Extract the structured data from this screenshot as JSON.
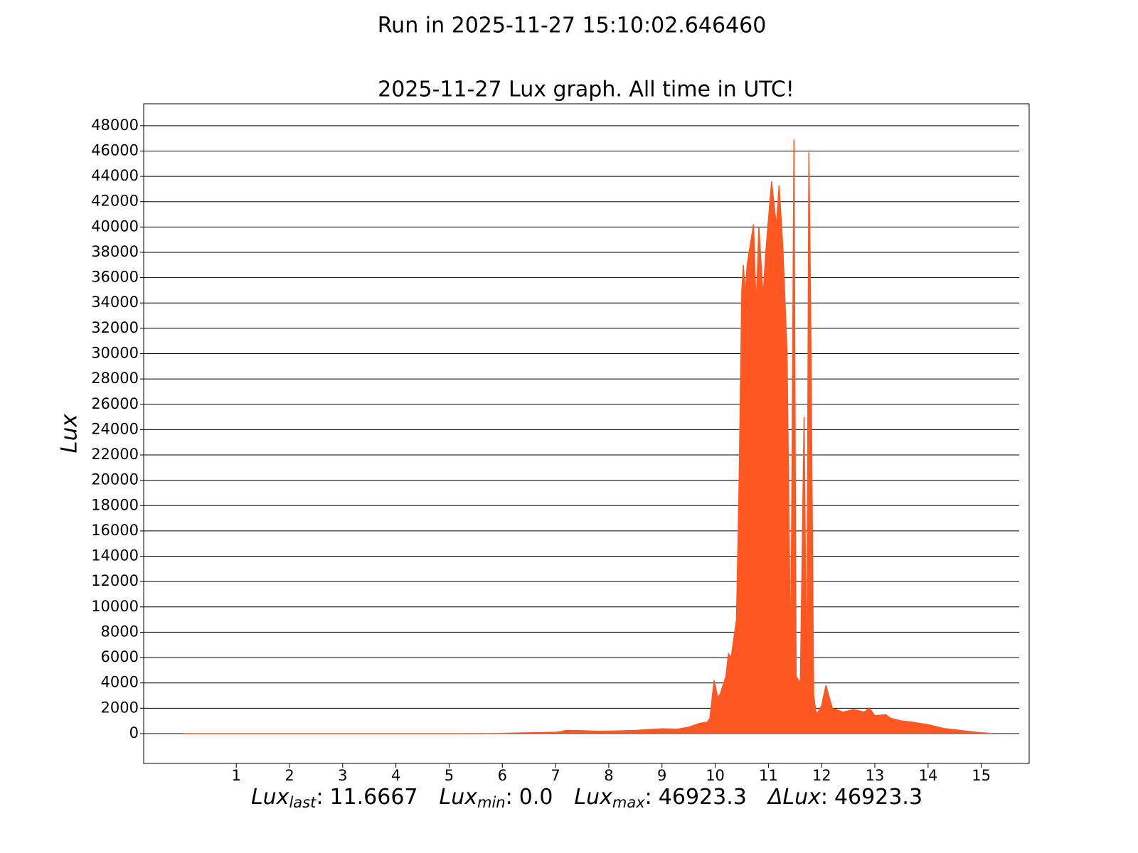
{
  "chart_data": {
    "type": "area",
    "suptitle": "Run in 2025-11-27 15:10:02.646460",
    "title": "2025-11-27 Lux graph. All time in UTC!",
    "ylabel": "Lux",
    "color": "#ff5722",
    "grid": true,
    "xlim": [
      -0.74,
      15.9
    ],
    "ylim": [
      -2360,
      49730
    ],
    "xticks": [
      1,
      2,
      3,
      4,
      5,
      6,
      7,
      8,
      9,
      10,
      11,
      12,
      13,
      14,
      15
    ],
    "yticks": [
      0,
      2000,
      4000,
      6000,
      8000,
      10000,
      12000,
      14000,
      16000,
      18000,
      20000,
      22000,
      24000,
      26000,
      28000,
      30000,
      32000,
      34000,
      36000,
      38000,
      40000,
      42000,
      44000,
      46000,
      48000
    ],
    "x": [
      0.0,
      1.0,
      2.0,
      3.0,
      4.0,
      5.0,
      5.5,
      6.0,
      6.5,
      7.0,
      7.1,
      7.2,
      7.5,
      7.8,
      8.0,
      8.5,
      9.0,
      9.3,
      9.5,
      9.7,
      9.85,
      9.9,
      9.98,
      10.05,
      10.1,
      10.2,
      10.25,
      10.3,
      10.4,
      10.45,
      10.5,
      10.53,
      10.56,
      10.6,
      10.72,
      10.77,
      10.82,
      10.9,
      10.95,
      11.06,
      11.15,
      11.2,
      11.27,
      11.35,
      11.42,
      11.48,
      11.52,
      11.6,
      11.67,
      11.72,
      11.76,
      11.79,
      11.85,
      11.9,
      12.0,
      12.08,
      12.2,
      12.4,
      12.6,
      12.8,
      12.9,
      13.0,
      13.2,
      13.3,
      13.5,
      13.7,
      14.0,
      14.3,
      14.7,
      15.0,
      15.2
    ],
    "values": [
      0,
      0,
      0,
      0,
      0,
      0,
      5,
      20,
      60,
      100,
      150,
      250,
      230,
      180,
      190,
      250,
      380,
      350,
      500,
      800,
      900,
      1200,
      4200,
      2800,
      3200,
      4500,
      6300,
      6000,
      9000,
      20000,
      35000,
      37000,
      34500,
      37000,
      40200,
      33500,
      40000,
      34500,
      38000,
      43600,
      40000,
      43300,
      38500,
      30000,
      5000,
      46900,
      4500,
      4000,
      25000,
      2500,
      45900,
      35000,
      3000,
      1500,
      2200,
      3800,
      2000,
      1700,
      1900,
      1700,
      2000,
      1400,
      1500,
      1200,
      1000,
      900,
      700,
      400,
      200,
      60,
      10
    ],
    "separator": ":",
    "stats": [
      {
        "symbol": "Lux",
        "subscript": "last",
        "value": "11.6667"
      },
      {
        "symbol": "Lux",
        "subscript": "min",
        "value": "0.0"
      },
      {
        "symbol": "Lux",
        "subscript": "max",
        "value": "46923.3"
      },
      {
        "symbol": "ΔLux",
        "value": "46923.3"
      }
    ]
  }
}
